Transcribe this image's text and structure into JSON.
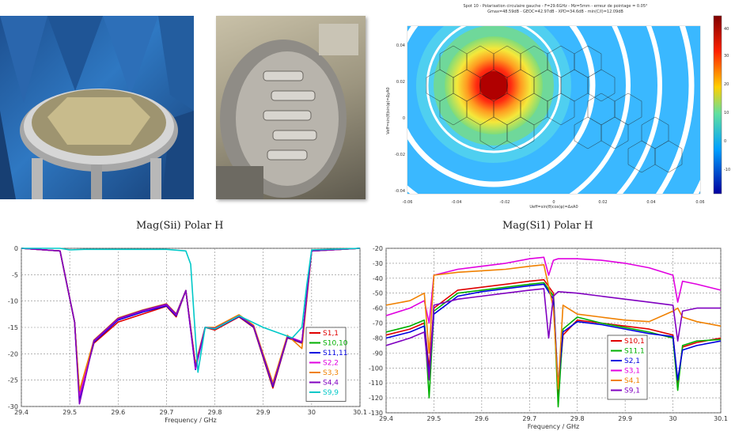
{
  "captions": {
    "left": "Mag(Sii) Polar H",
    "right": "Mag(Si1) Polar H"
  },
  "colors": {
    "S1,1": "#e00000",
    "S10,10": "#00b000",
    "S11,11": "#0000e0",
    "S2,2": "#e000e0",
    "S3,3": "#f08000",
    "S4,4": "#8000c0",
    "S9,9": "#00c8c8",
    "S10,1": "#e00000",
    "S11,1": "#00b000",
    "S2,1": "#0000e0",
    "S3,1": "#e000e0",
    "S4,1": "#f08000",
    "S9,1": "#8000c0"
  },
  "contour": {
    "title": "Spot 10 - Polarisation circulaire gauche - F=29.6GHz - Mz=5mm - erreur de pointage = 0.05°",
    "subtitle": "Gmax=48.59dB - GEOC=42.97dB - XPD=34.6dB - min(C/I)=12.09dB",
    "xticks": [
      "-0.06",
      "-0.04",
      "-0.02",
      "0",
      "0.02",
      "0.04",
      "0.06"
    ],
    "yticks": [
      "0.04",
      "0.02",
      "0",
      "-0.02",
      "-0.04"
    ],
    "colorbar_ticks": [
      "40",
      "30",
      "20",
      "10",
      "0",
      "-10"
    ],
    "xlabel": "Ueff=sin(θ)cos(φ)=ΔxA0",
    "ylabel": "Veff=sin(θ)sin(φ)=ΔyA0"
  },
  "chart_data": [
    {
      "type": "line",
      "xlabel": "Frequency / GHz",
      "ylabel": "",
      "xlim": [
        29.4,
        30.1
      ],
      "ylim": [
        -30,
        0
      ],
      "xticks": [
        29.4,
        29.5,
        29.6,
        29.7,
        29.8,
        29.9,
        30,
        30.1
      ],
      "yticks": [
        0,
        -5,
        -10,
        -15,
        -20,
        -25,
        -30
      ],
      "grid": true,
      "legend": "bottom-right",
      "series": [
        {
          "name": "S1,1",
          "x": [
            29.4,
            29.48,
            29.51,
            29.52,
            29.55,
            29.6,
            29.65,
            29.7,
            29.72,
            29.74,
            29.76,
            29.78,
            29.8,
            29.85,
            29.88,
            29.92,
            29.95,
            29.98,
            30.0,
            30.1
          ],
          "y": [
            0,
            -0.5,
            -14,
            -28,
            -18,
            -14,
            -12.5,
            -11,
            -13,
            -8,
            -22,
            -15,
            -15.5,
            -13,
            -15,
            -26.5,
            -17,
            -18,
            -0.5,
            0
          ]
        },
        {
          "name": "S10,10",
          "x": [
            29.4,
            29.48,
            29.51,
            29.52,
            29.55,
            29.6,
            29.65,
            29.7,
            29.72,
            29.74,
            29.76,
            29.78,
            29.8,
            29.85,
            29.88,
            29.92,
            29.95,
            29.98,
            30.0,
            30.1
          ],
          "y": [
            0,
            -0.5,
            -14,
            -27.5,
            -17.5,
            -13.5,
            -12,
            -10.8,
            -12.7,
            -8,
            -22.5,
            -15,
            -15.2,
            -12.8,
            -14.8,
            -26,
            -16.8,
            -17.8,
            -0.5,
            0
          ]
        },
        {
          "name": "S11,11",
          "x": [
            29.4,
            29.48,
            29.51,
            29.52,
            29.55,
            29.6,
            29.65,
            29.7,
            29.72,
            29.74,
            29.76,
            29.78,
            29.8,
            29.85,
            29.88,
            29.92,
            29.95,
            29.98,
            30.0,
            30.1
          ],
          "y": [
            0,
            -0.5,
            -14,
            -28.5,
            -17.8,
            -13.6,
            -12.1,
            -10.9,
            -12.8,
            -8,
            -23,
            -15,
            -15.3,
            -12.9,
            -14.9,
            -26.2,
            -16.9,
            -17.9,
            -0.5,
            0
          ]
        },
        {
          "name": "S2,2",
          "x": [
            29.4,
            29.48,
            29.51,
            29.52,
            29.55,
            29.6,
            29.65,
            29.7,
            29.72,
            29.74,
            29.76,
            29.78,
            29.8,
            29.85,
            29.88,
            29.92,
            29.95,
            29.98,
            30.0,
            30.1
          ],
          "y": [
            0,
            -0.5,
            -14,
            -28,
            -17.6,
            -13.4,
            -11.9,
            -10.7,
            -12.6,
            -8,
            -22.8,
            -15,
            -15.1,
            -12.7,
            -14.7,
            -25.8,
            -16.7,
            -17.7,
            -0.5,
            0
          ]
        },
        {
          "name": "S3,3",
          "x": [
            29.4,
            29.48,
            29.51,
            29.52,
            29.55,
            29.6,
            29.65,
            29.7,
            29.72,
            29.74,
            29.76,
            29.78,
            29.8,
            29.85,
            29.88,
            29.92,
            29.95,
            29.98,
            30.0,
            30.1
          ],
          "y": [
            0,
            -0.5,
            -14,
            -27,
            -17.4,
            -13.2,
            -11.7,
            -10.5,
            -12.4,
            -8,
            -22,
            -15,
            -15,
            -12.6,
            -14.6,
            -25.5,
            -16.5,
            -19,
            -0.5,
            0
          ]
        },
        {
          "name": "S4,4",
          "x": [
            29.4,
            29.48,
            29.51,
            29.52,
            29.55,
            29.6,
            29.65,
            29.7,
            29.72,
            29.74,
            29.76,
            29.78,
            29.8,
            29.85,
            29.88,
            29.92,
            29.95,
            29.98,
            30.0,
            30.1
          ],
          "y": [
            0,
            -0.5,
            -14,
            -29.5,
            -17.5,
            -13.3,
            -11.8,
            -10.6,
            -12.5,
            -8,
            -22.5,
            -15,
            -15.2,
            -12.8,
            -14.8,
            -26,
            -16.8,
            -17.8,
            -0.5,
            0
          ]
        },
        {
          "name": "S9,9",
          "x": [
            29.4,
            29.48,
            29.5,
            29.53,
            29.6,
            29.7,
            29.74,
            29.75,
            29.76,
            29.765,
            29.78,
            29.8,
            29.85,
            29.9,
            29.96,
            29.98,
            29.99,
            30.0,
            30.1
          ],
          "y": [
            0,
            0,
            -0.3,
            -0.2,
            -0.2,
            -0.2,
            -0.5,
            -3,
            -17,
            -23.5,
            -15,
            -15.3,
            -12.8,
            -15,
            -17,
            -15,
            -7,
            -0.3,
            0
          ]
        }
      ]
    },
    {
      "type": "line",
      "xlabel": "Frequency / GHz",
      "ylabel": "",
      "xlim": [
        29.4,
        30.1
      ],
      "ylim": [
        -130,
        -20
      ],
      "xticks": [
        29.4,
        29.5,
        29.6,
        29.7,
        29.8,
        29.9,
        30,
        30.1
      ],
      "yticks": [
        -20,
        -30,
        -40,
        -50,
        -60,
        -70,
        -80,
        -90,
        -100,
        -110,
        -120,
        -130
      ],
      "grid": true,
      "legend": "bottom-right",
      "series": [
        {
          "name": "S10,1",
          "x": [
            29.4,
            29.45,
            29.48,
            29.49,
            29.5,
            29.55,
            29.6,
            29.65,
            29.7,
            29.73,
            29.75,
            29.76,
            29.77,
            29.8,
            29.85,
            29.9,
            29.95,
            30.0,
            30.01,
            30.02,
            30.05,
            30.1
          ],
          "y": [
            -78,
            -74,
            -70,
            -100,
            -60,
            -48,
            -46,
            -44,
            -42,
            -41,
            -50,
            -118,
            -78,
            -68,
            -70,
            -72,
            -74,
            -78,
            -110,
            -86,
            -83,
            -80
          ]
        },
        {
          "name": "S11,1",
          "x": [
            29.4,
            29.45,
            29.48,
            29.49,
            29.5,
            29.55,
            29.6,
            29.65,
            29.7,
            29.73,
            29.75,
            29.76,
            29.77,
            29.8,
            29.85,
            29.9,
            29.95,
            30.0,
            30.01,
            30.02,
            30.05,
            30.1
          ],
          "y": [
            -76,
            -72,
            -68,
            -120,
            -62,
            -50,
            -48,
            -46,
            -44,
            -43,
            -52,
            -126,
            -74,
            -66,
            -70,
            -73,
            -76,
            -80,
            -115,
            -85,
            -82,
            -81
          ]
        },
        {
          "name": "S2,1",
          "x": [
            29.4,
            29.45,
            29.48,
            29.49,
            29.5,
            29.55,
            29.6,
            29.65,
            29.7,
            29.73,
            29.75,
            29.76,
            29.77,
            29.8,
            29.85,
            29.9,
            29.95,
            30.0,
            30.01,
            30.02,
            30.05,
            30.1
          ],
          "y": [
            -80,
            -76,
            -72,
            -105,
            -64,
            -52,
            -49,
            -47,
            -45,
            -44,
            -54,
            -112,
            -76,
            -69,
            -71,
            -74,
            -77,
            -79,
            -108,
            -88,
            -85,
            -82
          ]
        },
        {
          "name": "S3,1",
          "x": [
            29.4,
            29.45,
            29.48,
            29.49,
            29.5,
            29.55,
            29.6,
            29.65,
            29.7,
            29.73,
            29.74,
            29.75,
            29.76,
            29.8,
            29.85,
            29.9,
            29.95,
            30.0,
            30.01,
            30.02,
            30.05,
            30.1
          ],
          "y": [
            -65,
            -60,
            -55,
            -70,
            -38,
            -34,
            -32,
            -30,
            -27,
            -26,
            -38,
            -28,
            -27,
            -27,
            -28,
            -30,
            -33,
            -38,
            -56,
            -42,
            -44,
            -48
          ]
        },
        {
          "name": "S4,1",
          "x": [
            29.4,
            29.45,
            29.48,
            29.49,
            29.5,
            29.55,
            29.6,
            29.65,
            29.7,
            29.73,
            29.75,
            29.76,
            29.77,
            29.8,
            29.85,
            29.9,
            29.95,
            30.0,
            30.01,
            30.02,
            30.05,
            30.1
          ],
          "y": [
            -58,
            -55,
            -50,
            -90,
            -38,
            -36,
            -35,
            -34,
            -32,
            -31,
            -60,
            -114,
            -58,
            -64,
            -66,
            -68,
            -69,
            -62,
            -60,
            -66,
            -69,
            -72
          ]
        },
        {
          "name": "S9,1",
          "x": [
            29.4,
            29.45,
            29.48,
            29.49,
            29.5,
            29.55,
            29.6,
            29.65,
            29.7,
            29.73,
            29.74,
            29.75,
            29.76,
            29.8,
            29.85,
            29.9,
            29.95,
            30.0,
            30.01,
            30.02,
            30.05,
            30.1
          ],
          "y": [
            -85,
            -80,
            -76,
            -108,
            -58,
            -54,
            -52,
            -50,
            -48,
            -47,
            -80,
            -52,
            -49,
            -50,
            -52,
            -54,
            -56,
            -58,
            -82,
            -62,
            -60,
            -60
          ]
        }
      ]
    }
  ]
}
